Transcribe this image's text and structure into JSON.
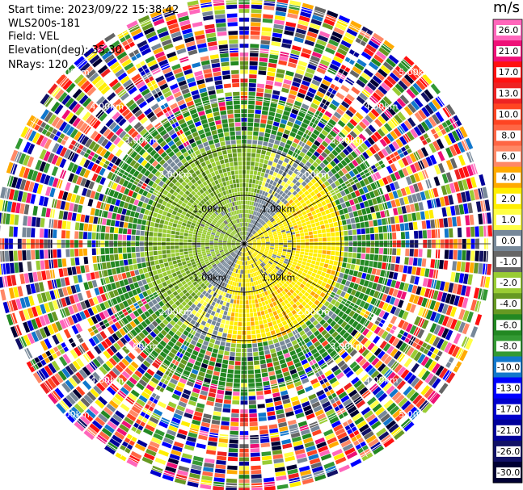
{
  "header": {
    "start_time": "Start time: 2023/09/22 15:38:42",
    "instrument": "WLS200s-181",
    "field": "Field: VEL",
    "elevation": "Elevation(deg): 35.30",
    "nrays": "NRays: 120"
  },
  "chart_data": {
    "type": "heatmap",
    "subtype": "polar-ppi",
    "field": "VEL",
    "units": "m/s",
    "range_rings_km": [
      "1.00km",
      "2.00km",
      "3.00km",
      "4.00km",
      "5.00km"
    ],
    "nrays": 120,
    "colorbar": {
      "label": "m/s",
      "ticks": [
        "26.0",
        "21.0",
        "17.0",
        "13.0",
        "10.0",
        "8.0",
        "6.0",
        "4.0",
        "2.0",
        "1.0",
        "0.0",
        "-1.0",
        "-2.0",
        "-4.0",
        "-6.0",
        "-8.0",
        "-10.0",
        "-13.0",
        "-17.0",
        "-21.0",
        "-26.0",
        "-30.0"
      ],
      "colors": [
        "#ff66bb",
        "#ee1177",
        "#ff1111",
        "#ee2222",
        "#ff4422",
        "#ff6644",
        "#ff8866",
        "#ffaa00",
        "#ffee00",
        "#ffff44",
        "#778899",
        "#666666",
        "#99cc33",
        "#669922",
        "#228822",
        "#339933",
        "#1177cc",
        "#0000ff",
        "#0000cc",
        "#000099",
        "#111166",
        "#000033"
      ]
    }
  }
}
